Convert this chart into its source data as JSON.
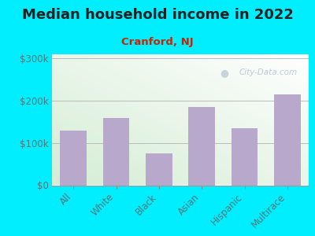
{
  "title": "Median household income in 2022",
  "subtitle": "Cranford, NJ",
  "categories": [
    "All",
    "White",
    "Black",
    "Asian",
    "Hispanic",
    "Multirace"
  ],
  "values": [
    130000,
    160000,
    75000,
    185000,
    135000,
    215000
  ],
  "bar_color": "#b8a8cc",
  "background_outer": "#00eeff",
  "title_color": "#222222",
  "subtitle_color": "#cc2200",
  "tick_label_color": "#557777",
  "ytick_labels": [
    "$0",
    "$100k",
    "$200k",
    "$300k"
  ],
  "ytick_values": [
    0,
    100000,
    200000,
    300000
  ],
  "ylim": [
    0,
    310000
  ],
  "watermark": "City-Data.com",
  "title_fontsize": 13,
  "subtitle_fontsize": 9.5,
  "tick_fontsize": 8.5
}
